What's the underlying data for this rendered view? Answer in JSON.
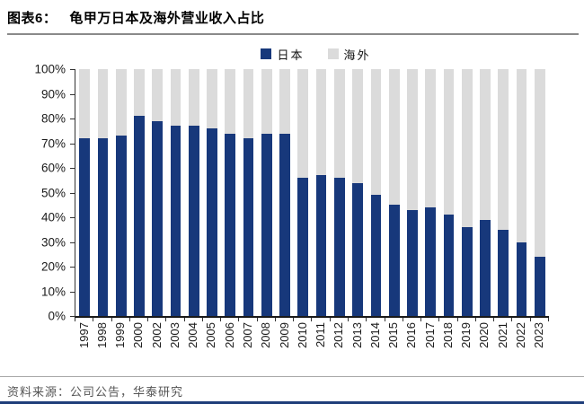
{
  "header": {
    "tag": "图表6：",
    "title": "龟甲万日本及海外营业收入占比"
  },
  "legend": {
    "items": [
      {
        "label": "日本",
        "color": "#17387B"
      },
      {
        "label": "海外",
        "color": "#DBDBDB"
      }
    ]
  },
  "chart_data": {
    "type": "bar",
    "stacked": true,
    "title": "龟甲万日本及海外营业收入占比",
    "xlabel": "",
    "ylabel": "",
    "ylim": [
      0,
      100
    ],
    "grid": false,
    "legend_position": "top-center",
    "yticks": [
      "0%",
      "10%",
      "20%",
      "30%",
      "40%",
      "50%",
      "60%",
      "70%",
      "80%",
      "90%",
      "100%"
    ],
    "categories": [
      "1997",
      "1998",
      "1999",
      "2000",
      "2002",
      "2003",
      "2004",
      "2005",
      "2006",
      "2007",
      "2008",
      "2009",
      "2010",
      "2011",
      "2012",
      "2013",
      "2014",
      "2015",
      "2016",
      "2017",
      "2018",
      "2019",
      "2020",
      "2021",
      "2022",
      "2023"
    ],
    "series": [
      {
        "name": "日本",
        "color": "#17387B",
        "values": [
          72,
          72,
          73,
          81,
          79,
          77,
          77,
          76,
          74,
          72,
          74,
          74,
          56,
          57,
          56,
          54,
          49,
          45,
          43,
          44,
          41,
          36,
          39,
          35,
          30,
          24
        ]
      },
      {
        "name": "海外",
        "color": "#DBDBDB",
        "values": [
          28,
          28,
          27,
          19,
          21,
          23,
          23,
          24,
          26,
          28,
          26,
          26,
          44,
          43,
          44,
          46,
          51,
          55,
          57,
          56,
          59,
          64,
          61,
          65,
          70,
          76
        ]
      }
    ]
  },
  "footer": {
    "source": "资料来源：公司公告，华泰研究"
  },
  "colors": {
    "accent_bar": "#1F3E7A",
    "header_rule": "#8A8A8A",
    "footer_rule": "#A8A8A8"
  }
}
